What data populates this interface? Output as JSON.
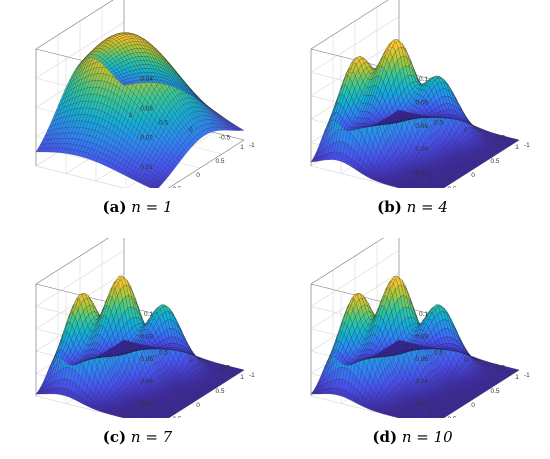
{
  "figure": {
    "panels": [
      {
        "letter": "a",
        "caption_text": " n = 1"
      },
      {
        "letter": "b",
        "caption_text": " n = 4"
      },
      {
        "letter": "c",
        "caption_text": " n = 7"
      },
      {
        "letter": "d",
        "caption_text": " n = 10"
      }
    ]
  },
  "chart_data": [
    {
      "type": "surface",
      "x_ticks": [
        "-1",
        "-0.5",
        "0",
        "0.5",
        "1"
      ],
      "y_ticks": [
        "-1",
        "-0.5",
        "0",
        "0.5",
        "1"
      ],
      "z_ticks": [
        "0",
        "0.01",
        "0.02",
        "0.03",
        "0.04"
      ],
      "zlim": [
        0,
        0.04
      ],
      "xlim": [
        -1,
        1
      ],
      "ylim": [
        -1,
        1
      ],
      "grid": true,
      "colormap": "parula",
      "peaks": [
        {
          "x": 0.1,
          "y": 0.3,
          "height": 0.038,
          "sx": 0.6,
          "sy": 0.8
        }
      ]
    },
    {
      "type": "surface",
      "x_ticks": [
        "-1",
        "-0.5",
        "0",
        "0.5",
        "1"
      ],
      "y_ticks": [
        "-1",
        "-0.5",
        "0",
        "0.5",
        "1"
      ],
      "z_ticks": [
        "0",
        "0.02",
        "0.04",
        "0.06",
        "0.08",
        "0.1"
      ],
      "zlim": [
        0,
        0.1
      ],
      "xlim": [
        -1,
        1
      ],
      "ylim": [
        -1,
        1
      ],
      "grid": true,
      "colormap": "parula",
      "peaks": [
        {
          "x": -0.55,
          "y": 0.55,
          "height": 0.085,
          "sx": 0.22,
          "sy": 0.3
        },
        {
          "x": 0.0,
          "y": 0.3,
          "height": 0.09,
          "sx": 0.22,
          "sy": 0.3
        },
        {
          "x": 0.55,
          "y": 0.0,
          "height": 0.05,
          "sx": 0.2,
          "sy": 0.28
        }
      ]
    },
    {
      "type": "surface",
      "x_ticks": [
        "-1",
        "-0.5",
        "0",
        "0.5",
        "1"
      ],
      "y_ticks": [
        "-1",
        "-0.5",
        "0",
        "0.5",
        "1"
      ],
      "z_ticks": [
        "0",
        "0.02",
        "0.04",
        "0.06",
        "0.08",
        "0.1"
      ],
      "zlim": [
        0,
        0.1
      ],
      "xlim": [
        -1,
        1
      ],
      "ylim": [
        -1,
        1
      ],
      "grid": true,
      "colormap": "parula",
      "peaks": [
        {
          "x": -0.55,
          "y": 0.55,
          "height": 0.085,
          "sx": 0.2,
          "sy": 0.28
        },
        {
          "x": 0.0,
          "y": 0.3,
          "height": 0.09,
          "sx": 0.2,
          "sy": 0.28
        },
        {
          "x": 0.55,
          "y": 0.0,
          "height": 0.055,
          "sx": 0.18,
          "sy": 0.26
        }
      ]
    },
    {
      "type": "surface",
      "x_ticks": [
        "-1",
        "-0.5",
        "0",
        "0.5",
        "1"
      ],
      "y_ticks": [
        "-1",
        "-0.5",
        "0",
        "0.5",
        "1"
      ],
      "z_ticks": [
        "0",
        "0.02",
        "0.04",
        "0.06",
        "0.08",
        "0.1"
      ],
      "zlim": [
        0,
        0.1
      ],
      "xlim": [
        -1,
        1
      ],
      "ylim": [
        -1,
        1
      ],
      "grid": true,
      "colormap": "parula",
      "peaks": [
        {
          "x": -0.55,
          "y": 0.55,
          "height": 0.085,
          "sx": 0.2,
          "sy": 0.28
        },
        {
          "x": 0.0,
          "y": 0.3,
          "height": 0.09,
          "sx": 0.2,
          "sy": 0.28
        },
        {
          "x": 0.55,
          "y": 0.0,
          "height": 0.055,
          "sx": 0.18,
          "sy": 0.26
        }
      ]
    }
  ]
}
